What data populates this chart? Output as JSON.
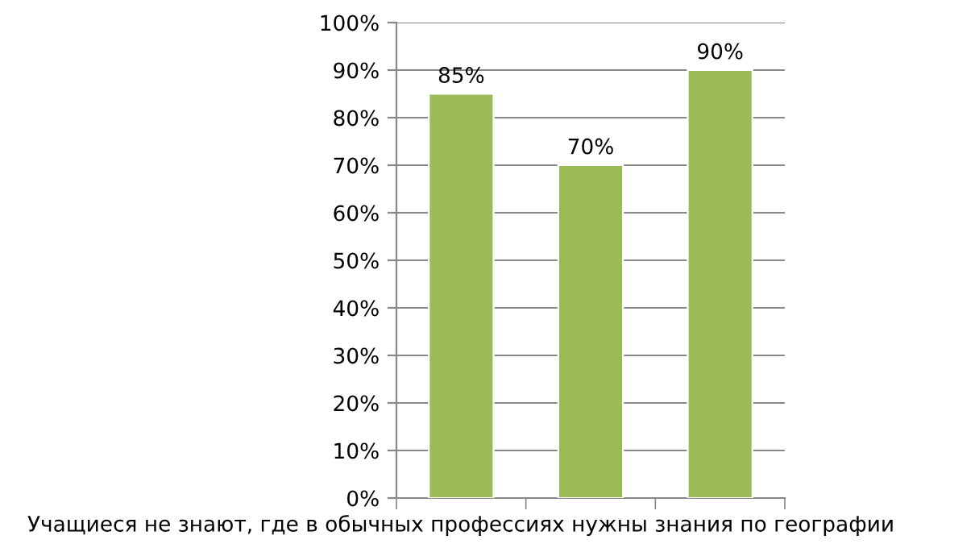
{
  "chart_data": {
    "type": "bar",
    "xlabel": "Учащиеся не знают, где в обычных профессиях нужны знания по географии",
    "categories": [
      null,
      null,
      null
    ],
    "values": [
      85,
      70,
      90
    ],
    "value_labels": [
      "85%",
      "70%",
      "90%"
    ],
    "color": "#9bbb59",
    "ylim": [
      0,
      100
    ],
    "yticks": [
      {
        "value": 0,
        "label": "0%"
      },
      {
        "value": 10,
        "label": "10%"
      },
      {
        "value": 20,
        "label": "20%"
      },
      {
        "value": 30,
        "label": "30%"
      },
      {
        "value": 40,
        "label": "40%"
      },
      {
        "value": 50,
        "label": "50%"
      },
      {
        "value": 60,
        "label": "60%"
      },
      {
        "value": 70,
        "label": "70%"
      },
      {
        "value": 80,
        "label": "80%"
      },
      {
        "value": 90,
        "label": "90%"
      },
      {
        "value": 100,
        "label": "100%"
      }
    ],
    "grid": "y"
  }
}
